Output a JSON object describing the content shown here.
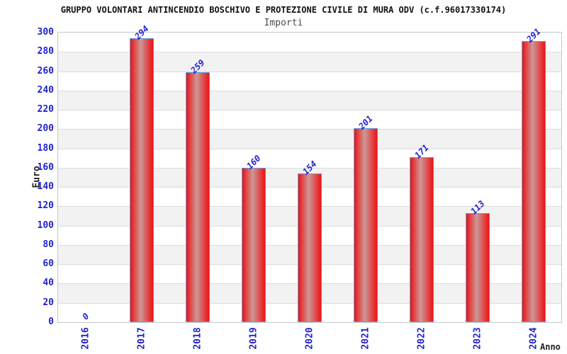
{
  "chart_data": {
    "type": "bar",
    "title": "GRUPPO VOLONTARI ANTINCENDIO BOSCHIVO E PROTEZIONE CIVILE DI MURA ODV (c.f.96017330174)",
    "subtitle": "Importi",
    "xlabel": "Anno",
    "ylabel": "Euro",
    "categories": [
      "2016",
      "2017",
      "2018",
      "2019",
      "2020",
      "2021",
      "2022",
      "2023",
      "2024"
    ],
    "values": [
      0,
      294,
      259,
      160,
      154,
      201,
      171,
      113,
      291
    ],
    "ylim": [
      0,
      300
    ],
    "ytick_step": 20,
    "grid": true,
    "legend": "none",
    "colors": {
      "bar_edge": "#ee1212",
      "bar_center": "#cc9898",
      "bar_border": "#5b9fe0",
      "tick_text": "#2222cc",
      "value_label_text": "#2222cc",
      "title_text": "#111111",
      "subtitle_text": "#4a4a4a",
      "axis_label_text": "#222222",
      "stripe": "#f2f2f2",
      "gridline": "#dcdcdc",
      "frame": "#c8c8c8"
    }
  }
}
